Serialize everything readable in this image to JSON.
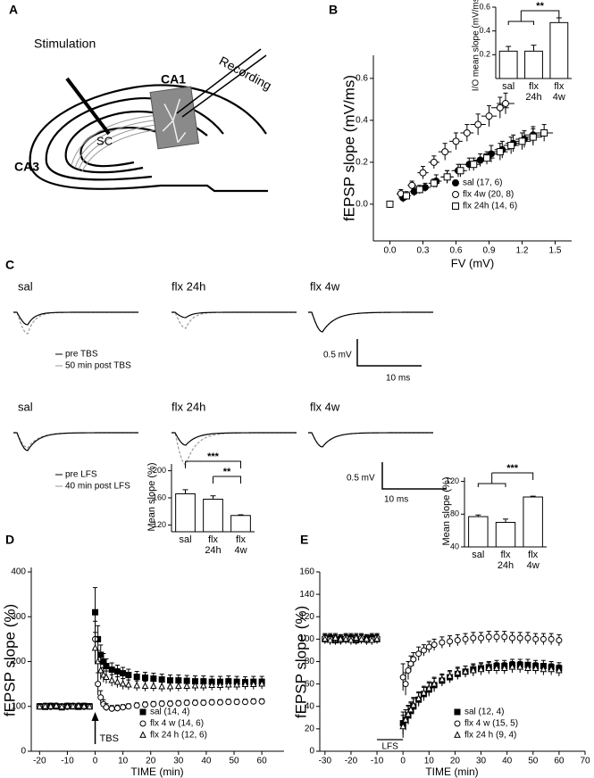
{
  "panel_labels": [
    "A",
    "B",
    "C",
    "D",
    "E"
  ],
  "diagram": {
    "stimulation": "Stimulation",
    "recording": "Recording",
    "ca1": "CA1",
    "ca3": "CA3",
    "sc": "SC"
  },
  "traces": {
    "rows": [
      {
        "groups": [
          "sal",
          "flx 24h",
          "flx 4w"
        ],
        "legend": [
          "pre TBS",
          "50 min post TBS"
        ]
      },
      {
        "groups": [
          "sal",
          "flx 24h",
          "flx 4w"
        ],
        "legend": [
          "pre LFS",
          "40 min post LFS"
        ]
      }
    ],
    "scale_bar": {
      "voltage": "0.5 mV",
      "time": "10 ms"
    }
  },
  "chart_data": [
    {
      "type": "scatter",
      "ylabel": "fEPSP slope (mV/ms)",
      "xlabel": "FV (mV)",
      "xlim": [
        -0.15,
        1.65
      ],
      "ylim": [
        -0.175,
        0.71
      ],
      "xticks": [
        {
          "value": 0,
          "label": "0.0"
        },
        0.3,
        0.6,
        0.9,
        1.2,
        1.5
      ],
      "yticks": [
        {
          "value": 0,
          "label": "0.0"
        },
        0.2,
        0.4,
        0.6
      ],
      "legend": "lower right",
      "series": [
        {
          "name": "sal (17, 6)",
          "marker": "filled-circle",
          "color": "#000000",
          "x": [
            0,
            0.12,
            0.22,
            0.32,
            0.42,
            0.52,
            0.62,
            0.72,
            0.82,
            0.92,
            1.02,
            1.12,
            1.22,
            1.3
          ],
          "values": [
            0,
            0.03,
            0.06,
            0.08,
            0.11,
            0.13,
            0.16,
            0.19,
            0.21,
            0.24,
            0.26,
            0.29,
            0.31,
            0.33
          ],
          "errors": [
            0.01,
            0.02,
            0.02,
            0.02,
            0.03,
            0.03,
            0.03,
            0.03,
            0.03,
            0.04,
            0.04,
            0.04,
            0.04,
            0.04
          ],
          "xerrors": [
            0.02,
            0.04,
            0.04,
            0.05,
            0.05,
            0.05,
            0.06,
            0.06,
            0.06,
            0.07,
            0.07,
            0.07,
            0.08,
            0.08
          ]
        },
        {
          "name": "flx 4w (20, 8)",
          "marker": "open-circle",
          "color": "#000000",
          "x": [
            0,
            0.1,
            0.2,
            0.3,
            0.4,
            0.5,
            0.6,
            0.7,
            0.8,
            0.9,
            1.0,
            1.05
          ],
          "values": [
            0,
            0.05,
            0.09,
            0.15,
            0.2,
            0.25,
            0.3,
            0.34,
            0.38,
            0.42,
            0.46,
            0.48
          ],
          "errors": [
            0.01,
            0.02,
            0.02,
            0.03,
            0.03,
            0.04,
            0.04,
            0.04,
            0.05,
            0.05,
            0.05,
            0.05
          ],
          "xerrors": [
            0.02,
            0.04,
            0.04,
            0.05,
            0.05,
            0.06,
            0.06,
            0.06,
            0.07,
            0.07,
            0.08,
            0.08
          ]
        },
        {
          "name": "flx 24h (14, 6)",
          "marker": "open-square",
          "color": "#000000",
          "x": [
            0,
            0.15,
            0.27,
            0.4,
            0.52,
            0.64,
            0.76,
            0.88,
            1.0,
            1.1,
            1.2,
            1.3,
            1.4
          ],
          "values": [
            0,
            0.04,
            0.07,
            0.1,
            0.13,
            0.16,
            0.19,
            0.22,
            0.25,
            0.28,
            0.3,
            0.32,
            0.34
          ],
          "errors": [
            0.01,
            0.02,
            0.02,
            0.02,
            0.03,
            0.03,
            0.03,
            0.03,
            0.04,
            0.04,
            0.04,
            0.04,
            0.04
          ],
          "xerrors": [
            0.02,
            0.04,
            0.05,
            0.05,
            0.06,
            0.06,
            0.06,
            0.07,
            0.07,
            0.07,
            0.08,
            0.08,
            0.08
          ]
        }
      ]
    },
    {
      "type": "bar",
      "ylabel": "I/O mean slope (mV/ms)",
      "categories": [
        "sal",
        "flx 24h",
        "flx 4w"
      ],
      "values": [
        0.23,
        0.23,
        0.47
      ],
      "errors": [
        0.04,
        0.05,
        0.04
      ],
      "ylim": [
        0,
        0.6
      ],
      "yticks": [
        0.2,
        0.4,
        0.6
      ],
      "color": "#ffffff",
      "significance": [
        "**"
      ]
    },
    {
      "type": "scatter",
      "ylabel": "fEPSP slope (%)",
      "xlabel": "TIME (min)",
      "xlim": [
        -23,
        68
      ],
      "ylim": [
        0,
        410
      ],
      "xticks": [
        -20,
        -10,
        0,
        10,
        20,
        30,
        40,
        50,
        60
      ],
      "yticks": [
        0,
        100,
        200,
        300,
        400
      ],
      "legend": "lower right",
      "annotations": [
        {
          "text": "TBS",
          "x": 0
        }
      ],
      "x": [
        -20,
        -18,
        -16,
        -14,
        -12,
        -10,
        -8,
        -6,
        -4,
        -2,
        0,
        1,
        2,
        3,
        4,
        6,
        8,
        10,
        12,
        15,
        18,
        21,
        24,
        27,
        30,
        33,
        36,
        39,
        42,
        45,
        48,
        51,
        54,
        57,
        60
      ],
      "series": [
        {
          "name": "sal (14, 4)",
          "marker": "filled-square",
          "color": "#000000",
          "values": [
            100,
            99,
            101,
            100,
            98,
            101,
            100,
            99,
            101,
            100,
            310,
            250,
            215,
            200,
            190,
            182,
            178,
            174,
            170,
            166,
            164,
            162,
            160,
            158,
            158,
            157,
            156,
            156,
            155,
            155,
            156,
            155,
            154,
            155,
            155
          ],
          "errors": [
            6,
            6,
            6,
            6,
            6,
            6,
            6,
            6,
            6,
            6,
            55,
            30,
            22,
            18,
            16,
            15,
            14,
            13,
            13,
            12,
            12,
            12,
            12,
            12,
            12,
            12,
            12,
            12,
            12,
            12,
            12,
            12,
            12,
            12,
            12
          ]
        },
        {
          "name": "flx 4 w (14, 6)",
          "marker": "open-circle",
          "color": "#000000",
          "values": [
            100,
            101,
            99,
            100,
            100,
            99,
            101,
            100,
            99,
            100,
            250,
            150,
            120,
            105,
            98,
            95,
            96,
            98,
            100,
            102,
            104,
            105,
            106,
            106,
            107,
            108,
            108,
            108,
            109,
            109,
            110,
            110,
            110,
            111,
            111
          ],
          "errors": [
            6,
            6,
            6,
            6,
            6,
            6,
            6,
            6,
            6,
            6,
            40,
            25,
            15,
            10,
            8,
            7,
            7,
            6,
            6,
            6,
            6,
            6,
            6,
            6,
            6,
            6,
            6,
            6,
            6,
            6,
            6,
            6,
            6,
            6,
            6
          ]
        },
        {
          "name": "flx 24 h (12, 6)",
          "marker": "open-triangle",
          "color": "#000000",
          "values": [
            99,
            100,
            100,
            101,
            99,
            100,
            100,
            101,
            100,
            99,
            230,
            200,
            180,
            170,
            165,
            158,
            154,
            150,
            148,
            146,
            145,
            145,
            144,
            144,
            145,
            145,
            146,
            146,
            147,
            147,
            148,
            148,
            149,
            149,
            150
          ],
          "errors": [
            6,
            6,
            6,
            6,
            6,
            6,
            6,
            6,
            6,
            6,
            35,
            25,
            20,
            16,
            14,
            13,
            12,
            12,
            11,
            11,
            11,
            11,
            11,
            11,
            11,
            11,
            11,
            11,
            11,
            11,
            11,
            11,
            11,
            11,
            11
          ]
        }
      ]
    },
    {
      "type": "bar",
      "ylabel": "Mean slope (%)",
      "categories": [
        "sal",
        "flx 24h",
        "flx 4w"
      ],
      "values": [
        166,
        158,
        134
      ],
      "errors": [
        6,
        5,
        1
      ],
      "ylim": [
        110,
        210
      ],
      "yticks": [
        120,
        160,
        200
      ],
      "color": "#ffffff",
      "significance": [
        "***",
        "**"
      ]
    },
    {
      "type": "scatter",
      "ylabel": "fEPSP slope (%)",
      "xlabel": "TIME (min)",
      "xlim": [
        -32,
        70
      ],
      "ylim": [
        0,
        160
      ],
      "xticks": [
        -30,
        -20,
        -10,
        0,
        10,
        20,
        30,
        40,
        50,
        60,
        70
      ],
      "yticks": [
        0,
        20,
        40,
        60,
        80,
        100,
        120,
        140,
        160
      ],
      "legend": "lower right",
      "annotations": [
        {
          "text": "LFS",
          "x": [
            -10,
            0
          ]
        }
      ],
      "x": [
        -30,
        -28,
        -26,
        -24,
        -22,
        -20,
        -18,
        -16,
        -14,
        -12,
        -10,
        0,
        1,
        2,
        3,
        4,
        6,
        8,
        10,
        12,
        15,
        18,
        21,
        24,
        27,
        30,
        33,
        36,
        39,
        42,
        45,
        48,
        51,
        54,
        57,
        60
      ],
      "series": [
        {
          "name": "sal (12, 4)",
          "marker": "filled-square",
          "color": "#000000",
          "values": [
            100,
            101,
            99,
            100,
            100,
            101,
            99,
            100,
            100,
            101,
            100,
            25,
            28,
            32,
            36,
            40,
            46,
            51,
            55,
            59,
            63,
            66,
            69,
            71,
            73,
            74,
            75,
            76,
            76,
            77,
            77,
            77,
            76,
            76,
            75,
            74
          ],
          "errors": [
            4,
            4,
            4,
            4,
            4,
            4,
            4,
            4,
            4,
            4,
            4,
            10,
            9,
            8,
            7,
            7,
            6,
            6,
            6,
            6,
            5,
            5,
            5,
            5,
            5,
            5,
            5,
            5,
            5,
            5,
            5,
            5,
            5,
            5,
            5,
            5
          ]
        },
        {
          "name": "flx 4 w (15, 5)",
          "marker": "open-circle",
          "color": "#000000",
          "values": [
            101,
            100,
            100,
            99,
            101,
            100,
            100,
            101,
            99,
            100,
            101,
            66,
            60,
            72,
            78,
            82,
            87,
            90,
            93,
            95,
            97,
            98,
            99,
            100,
            101,
            101,
            102,
            102,
            102,
            101,
            101,
            101,
            100,
            100,
            100,
            99
          ],
          "errors": [
            4,
            4,
            4,
            4,
            4,
            4,
            4,
            4,
            4,
            4,
            4,
            12,
            10,
            8,
            7,
            6,
            6,
            5,
            5,
            5,
            5,
            5,
            5,
            5,
            5,
            5,
            5,
            5,
            5,
            5,
            5,
            5,
            5,
            5,
            5,
            5
          ]
        },
        {
          "name": "flx 24 h (9, 4)",
          "marker": "open-triangle",
          "color": "#000000",
          "values": [
            100,
            99,
            101,
            100,
            100,
            99,
            101,
            100,
            100,
            99,
            100,
            22,
            28,
            33,
            37,
            41,
            47,
            52,
            56,
            60,
            64,
            67,
            70,
            71,
            72,
            73,
            74,
            74,
            74,
            75,
            75,
            74,
            74,
            73,
            73,
            72
          ],
          "errors": [
            4,
            4,
            4,
            4,
            4,
            4,
            4,
            4,
            4,
            4,
            4,
            10,
            9,
            8,
            7,
            7,
            6,
            6,
            6,
            6,
            5,
            5,
            5,
            5,
            5,
            5,
            5,
            5,
            5,
            5,
            5,
            5,
            5,
            5,
            5,
            5
          ]
        }
      ]
    },
    {
      "type": "bar",
      "ylabel": "Mean slope (%)",
      "categories": [
        "sal",
        "flx 24h",
        "flx 4w"
      ],
      "values": [
        77,
        70,
        101
      ],
      "errors": [
        2,
        4,
        1
      ],
      "ylim": [
        40,
        125
      ],
      "yticks": [
        40,
        80,
        120
      ],
      "color": "#ffffff",
      "significance": [
        "***"
      ]
    }
  ]
}
